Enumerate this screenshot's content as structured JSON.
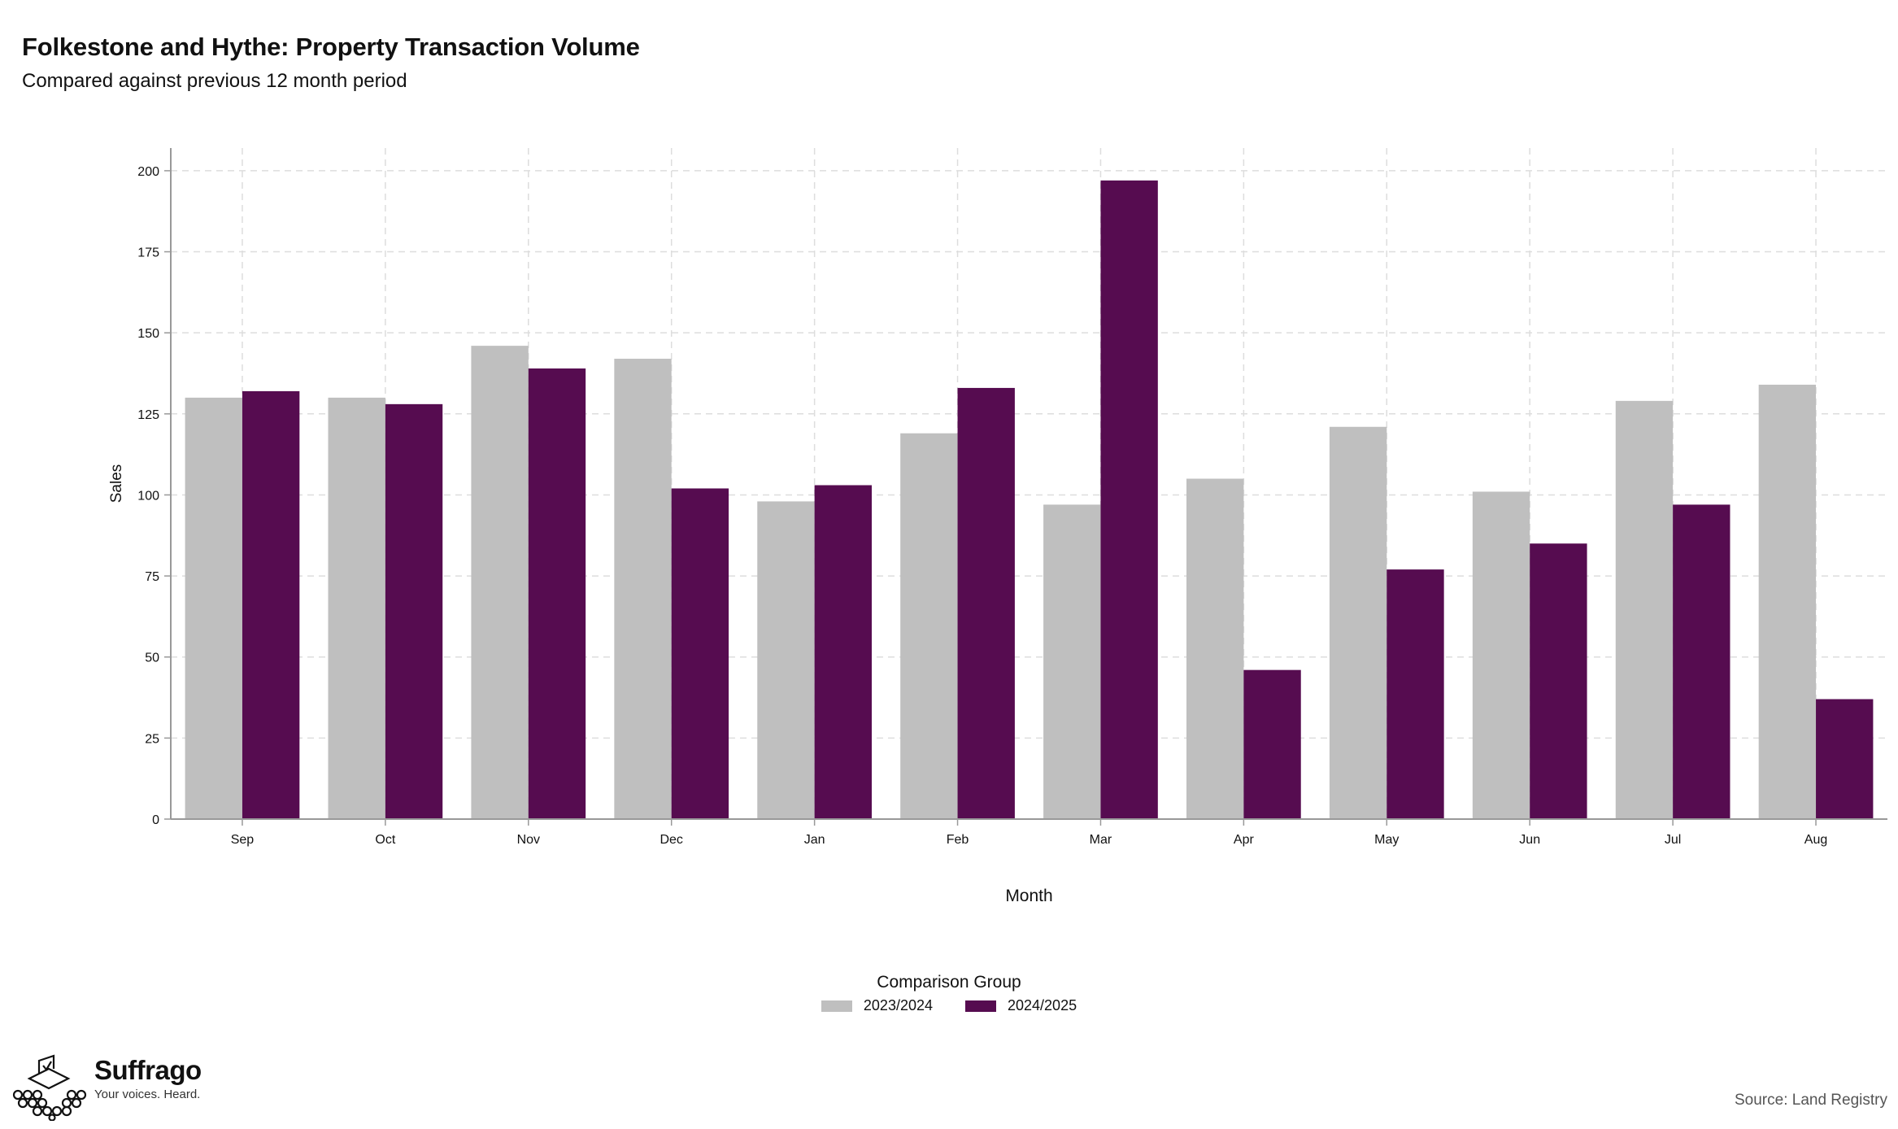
{
  "header": {
    "title": "Folkestone and Hythe: Property Transaction Volume",
    "subtitle": "Compared against previous 12 month period"
  },
  "legend": {
    "title": "Comparison Group"
  },
  "brand": {
    "name": "Suffrago",
    "tagline": "Your voices. Heard.",
    "logo_icon": "ballot-box-crowd-icon"
  },
  "source": "Source: Land Registry",
  "colors": {
    "series_2023": "#bfbfbf",
    "series_2024": "#560c50",
    "grid": "#dddddd",
    "axis": "#999999"
  },
  "chart_data": {
    "type": "bar",
    "title": "Folkestone and Hythe: Property Transaction Volume",
    "subtitle": "Compared against previous 12 month period",
    "xlabel": "Month",
    "ylabel": "Sales",
    "categories": [
      "Sep",
      "Oct",
      "Nov",
      "Dec",
      "Jan",
      "Feb",
      "Mar",
      "Apr",
      "May",
      "Jun",
      "Jul",
      "Aug"
    ],
    "series": [
      {
        "name": "2023/2024",
        "values": [
          130,
          130,
          146,
          142,
          98,
          119,
          97,
          105,
          121,
          101,
          129,
          134
        ]
      },
      {
        "name": "2024/2025",
        "values": [
          132,
          128,
          139,
          102,
          103,
          133,
          197,
          46,
          77,
          85,
          97,
          37
        ]
      }
    ],
    "ylim": [
      0,
      207
    ],
    "yticks": [
      0,
      25,
      50,
      75,
      100,
      125,
      150,
      175,
      200
    ],
    "grid": true,
    "legend_position": "bottom"
  }
}
